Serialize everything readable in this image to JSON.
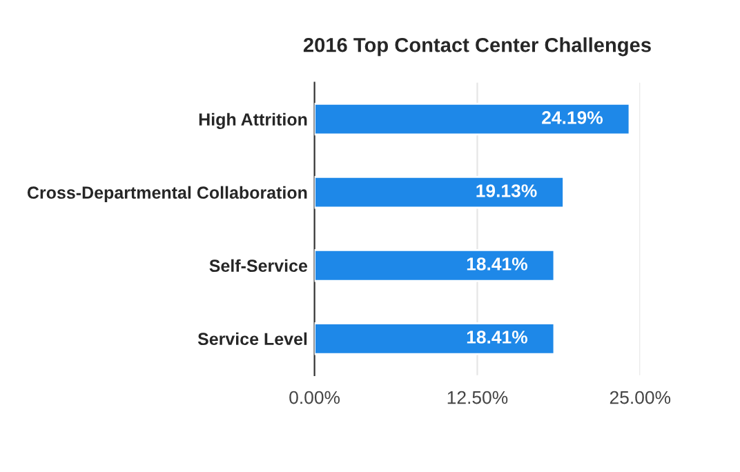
{
  "chart_data": {
    "type": "bar",
    "orientation": "horizontal",
    "title": "2016 Top Contact Center Challenges",
    "categories": [
      "High Attrition",
      "Cross-Departmental Collaboration",
      "Self-Service",
      "Service Level"
    ],
    "values": [
      24.19,
      19.13,
      18.41,
      18.41
    ],
    "value_labels": [
      "24.19%",
      "19.13%",
      "18.41%",
      "18.41%"
    ],
    "color": "#1e88e8",
    "xlim": [
      0,
      25
    ],
    "xticks": [
      {
        "value": 0,
        "label": "0.00%"
      },
      {
        "value": 12.5,
        "label": "12.50%"
      },
      {
        "value": 25,
        "label": "25.00%"
      }
    ],
    "grid": "x"
  }
}
